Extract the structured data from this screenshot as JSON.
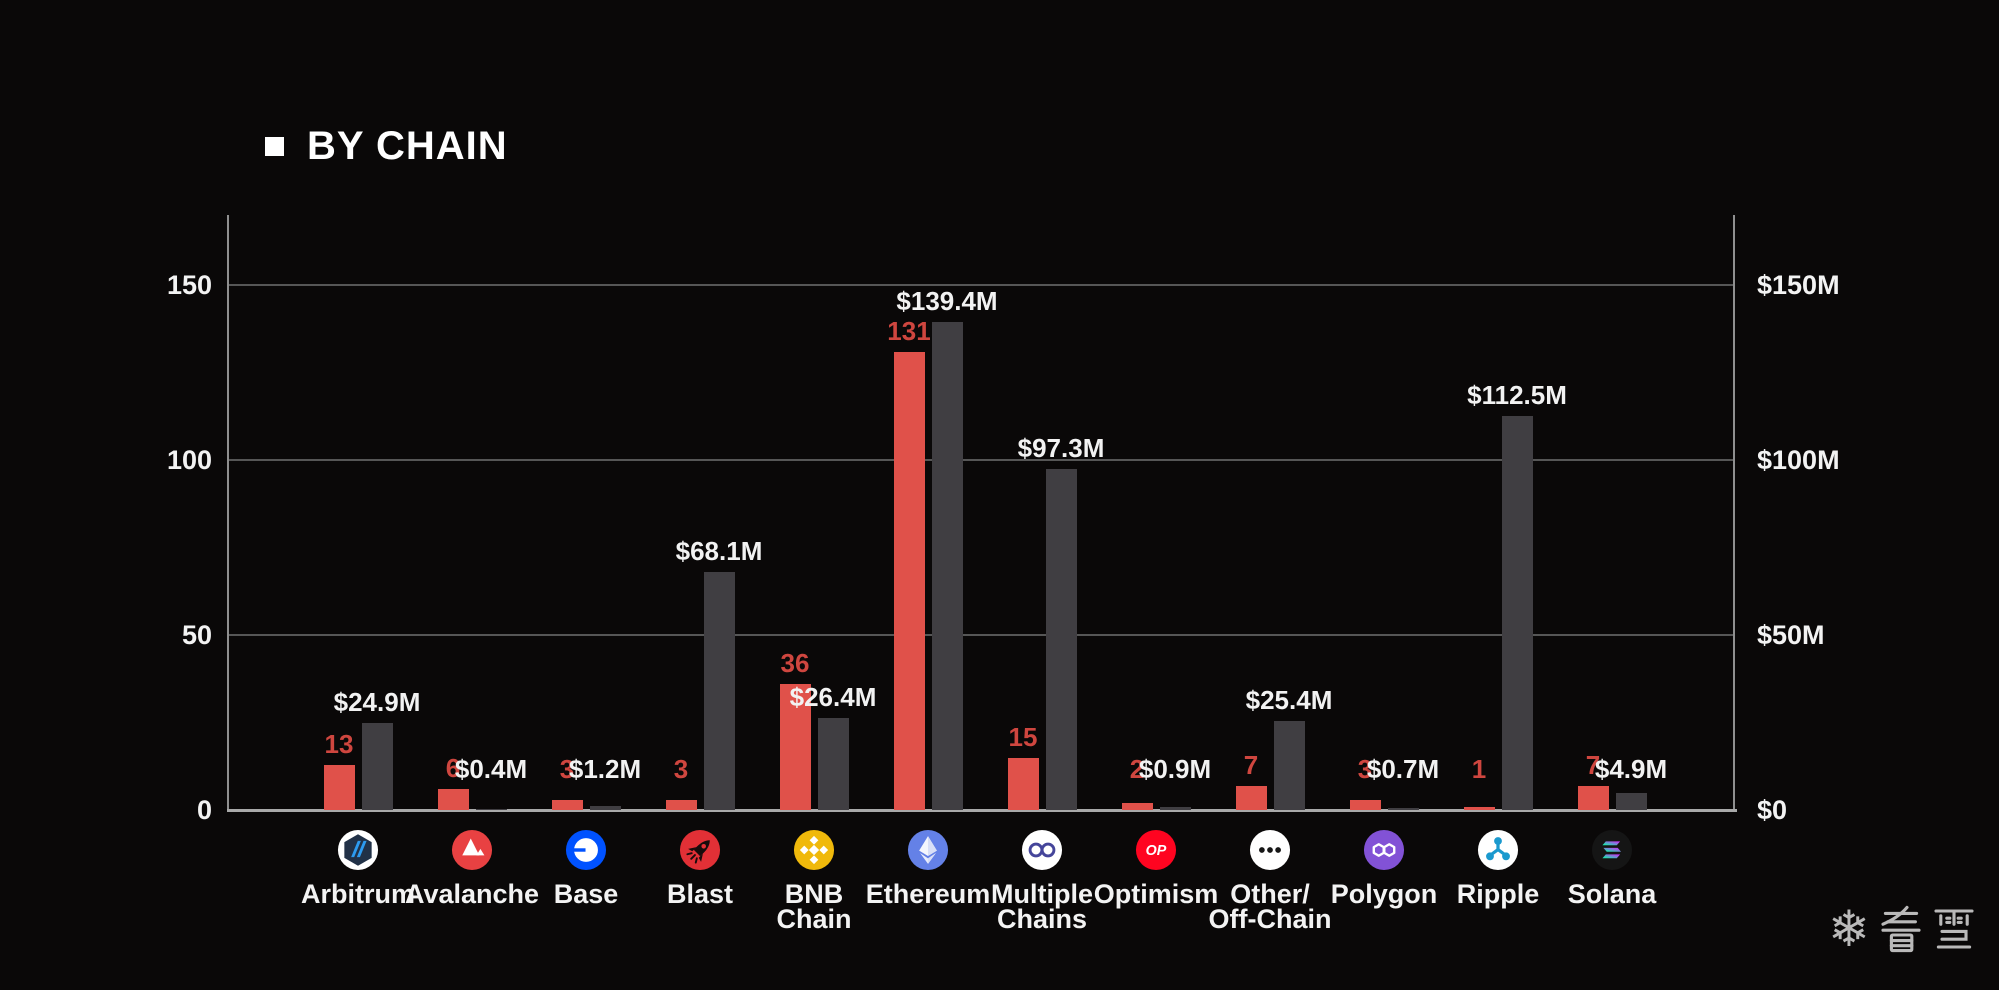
{
  "page": {
    "background": "#0a0808"
  },
  "header": {
    "title": "BY CHAIN"
  },
  "watermark": {
    "snowflake": "❄",
    "text": "看雪"
  },
  "chart_data": {
    "type": "bar",
    "title": "BY CHAIN",
    "grid": true,
    "legend": "none",
    "categories": [
      "Arbitrum",
      "Avalanche",
      "Base",
      "Blast",
      "BNB Chain",
      "Ethereum",
      "Multiple Chains",
      "Optimism",
      "Other/Off-Chain",
      "Polygon",
      "Ripple",
      "Solana"
    ],
    "category_labels": [
      "Arbitrum",
      "Avalanche",
      "Base",
      "Blast",
      "BNB\nChain",
      "Ethereum",
      "Multiple\nChains",
      "Optimism",
      "Other/\nOff-Chain",
      "Polygon",
      "Ripple",
      "Solana"
    ],
    "icons": [
      "arbitrum-icon",
      "avalanche-icon",
      "base-icon",
      "blast-icon",
      "bnb-chain-icon",
      "ethereum-icon",
      "multiple-chains-icon",
      "optimism-icon",
      "other-off-chain-icon",
      "polygon-icon",
      "ripple-icon",
      "solana-icon"
    ],
    "series": [
      {
        "name": "incident-count",
        "axis": "left",
        "color": "#e0514a",
        "values": [
          13,
          6,
          3,
          3,
          36,
          131,
          15,
          2,
          7,
          3,
          1,
          7
        ],
        "labels": [
          "13",
          "6",
          "3",
          "3",
          "36",
          "131",
          "15",
          "2",
          "7",
          "3",
          "1",
          "7"
        ]
      },
      {
        "name": "amount-usd-millions",
        "axis": "right",
        "color": "#403e42",
        "values": [
          24.9,
          0.4,
          1.2,
          68.1,
          26.4,
          139.4,
          97.3,
          0.9,
          25.4,
          0.7,
          112.5,
          4.9
        ],
        "labels": [
          "$24.9M",
          "$0.4M",
          "$1.2M",
          "$68.1M",
          "$26.4M",
          "$139.4M",
          "$97.3M",
          "$0.9M",
          "$25.4M",
          "$0.7M",
          "$112.5M",
          "$4.9M"
        ]
      }
    ],
    "left_axis": {
      "ticks": [
        "0",
        "50",
        "100",
        "150"
      ],
      "range": [
        0,
        170
      ]
    },
    "right_axis": {
      "ticks": [
        "$0",
        "$50M",
        "$100M",
        "$150M"
      ],
      "range": [
        0,
        170
      ]
    }
  }
}
